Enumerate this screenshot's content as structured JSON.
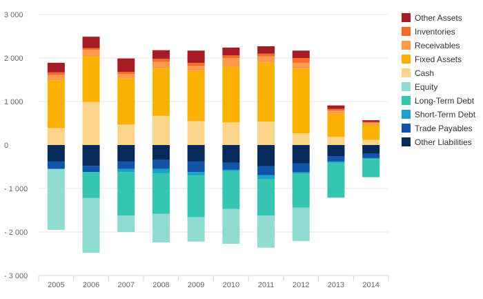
{
  "chart_data": {
    "type": "bar",
    "stacked": true,
    "title": "",
    "xlabel": "",
    "ylabel": "",
    "categories": [
      "2005",
      "2006",
      "2007",
      "2008",
      "2009",
      "2010",
      "2011",
      "2012",
      "2013",
      "2014"
    ],
    "ylim": [
      -3000,
      3000
    ],
    "yticks": [
      -3000,
      -2000,
      -1000,
      0,
      1000,
      2000,
      3000
    ],
    "ytick_labels": [
      "- 3 000",
      "- 2 000",
      "- 1 000",
      "0",
      "1 000",
      "2 000",
      "3 000"
    ],
    "grid": true,
    "legend_position": "right",
    "series": [
      {
        "name": "Other Assets",
        "color": "#a51c24",
        "values": [
          220,
          260,
          310,
          200,
          280,
          180,
          170,
          170,
          80,
          40
        ]
      },
      {
        "name": "Inventories",
        "color": "#f46a2a",
        "values": [
          60,
          40,
          50,
          70,
          70,
          60,
          60,
          110,
          40,
          20
        ]
      },
      {
        "name": "Receivables",
        "color": "#fb9a4a",
        "values": [
          120,
          150,
          100,
          150,
          110,
          200,
          140,
          140,
          70,
          50
        ]
      },
      {
        "name": "Fixed Assets",
        "color": "#fbb004",
        "values": [
          1100,
          1050,
          1060,
          1090,
          1160,
          1280,
          1360,
          1480,
          530,
          340
        ]
      },
      {
        "name": "Cash",
        "color": "#fdd58a",
        "values": [
          390,
          990,
          470,
          670,
          550,
          520,
          540,
          270,
          190,
          120
        ]
      },
      {
        "name": "Equity",
        "color": "#8fdcd2",
        "values": [
          -1400,
          -1260,
          -380,
          -660,
          -560,
          -800,
          -740,
          -770,
          0,
          0
        ]
      },
      {
        "name": "Long-Term Debt",
        "color": "#35c5b0",
        "values": [
          0,
          -600,
          -1000,
          -930,
          -960,
          -870,
          -830,
          -790,
          -800,
          -420
        ]
      },
      {
        "name": "Short-Term Debt",
        "color": "#1aa1cc",
        "values": [
          0,
          0,
          -70,
          -100,
          -80,
          -30,
          -100,
          -20,
          -30,
          -20
        ]
      },
      {
        "name": "Trade Payables",
        "color": "#1155aa",
        "values": [
          -170,
          -140,
          -170,
          -210,
          -240,
          -160,
          -200,
          -210,
          -120,
          -100
        ]
      },
      {
        "name": "Other Liabilities",
        "color": "#052a5a",
        "values": [
          -380,
          -480,
          -380,
          -340,
          -380,
          -410,
          -490,
          -420,
          -260,
          -200
        ]
      }
    ]
  }
}
